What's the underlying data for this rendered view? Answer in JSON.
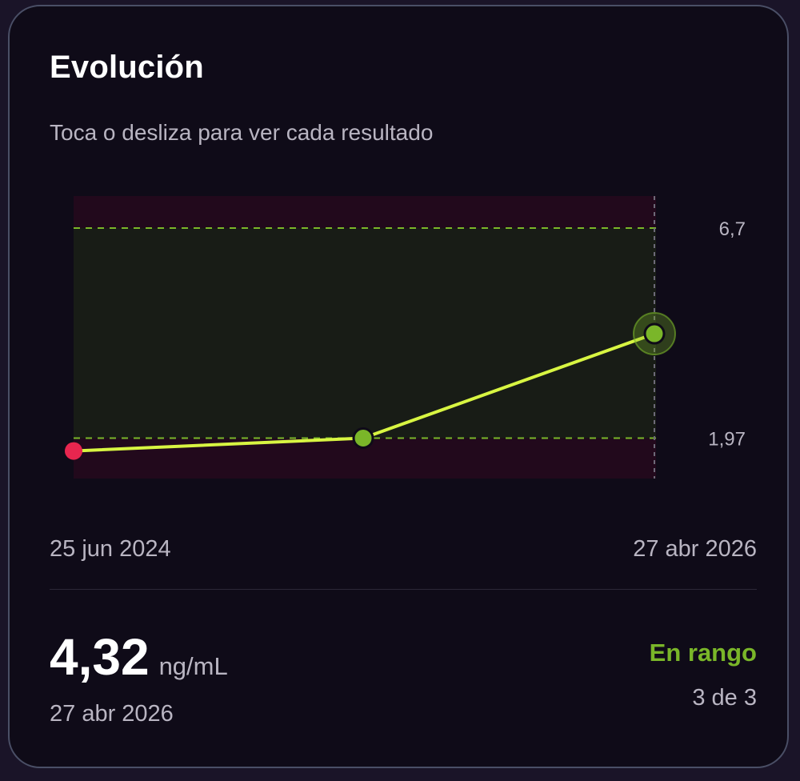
{
  "card": {
    "title": "Evolución",
    "subtitle": "Toca o desliza para ver cada resultado"
  },
  "chart_data": {
    "type": "line",
    "x": [
      "25 jun 2024",
      "",
      "27 abr 2026"
    ],
    "values": [
      1.68,
      1.97,
      4.32
    ],
    "point_status": [
      "out-of-range",
      "in-range",
      "in-range"
    ],
    "selected_index": 2,
    "reference_range": {
      "low": 1.97,
      "high": 6.7,
      "low_label": "1,97",
      "high_label": "6,7"
    },
    "ylim": [
      1.06,
      7.42
    ],
    "date_start_label": "25 jun 2024",
    "date_end_label": "27 abr 2026",
    "colors": {
      "line": "#d8f542",
      "point_in_range": "#7ab629",
      "point_out_of_range": "#e8264f",
      "range_band": "#181c16",
      "out_band": "#22091c",
      "range_line": "#7ab629"
    }
  },
  "selected": {
    "value": "4,32",
    "unit": "ng/mL",
    "date": "27 abr 2026",
    "status": "En rango",
    "counter": "3 de 3"
  }
}
